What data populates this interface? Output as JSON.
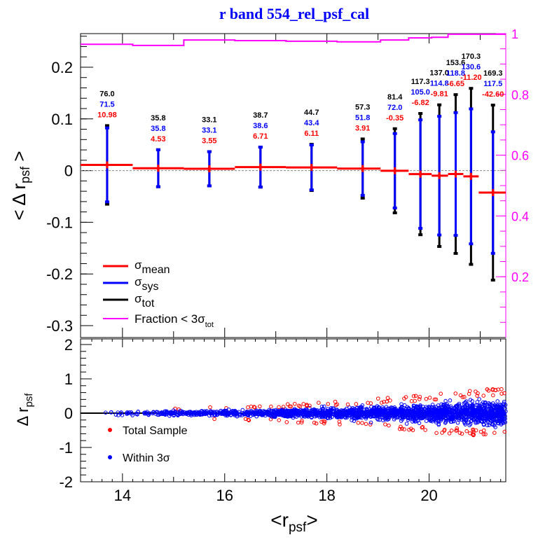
{
  "chart_data": [
    {
      "type": "bar",
      "title": "r band 554_rel_psf_cal",
      "xlabel": "<r_psf>",
      "ylabel": "< Δ r_psf >",
      "y2label": "Fraction < 3σ_tot",
      "xlim": [
        13.18,
        21.5
      ],
      "ylim": [
        -0.323,
        0.265
      ],
      "y2lim": [
        0,
        1
      ],
      "xticks": [
        "14",
        "16",
        "18",
        "20"
      ],
      "yticks": [
        "0.2",
        "0.1",
        "0",
        "-0.1",
        "-0.2",
        "-0.3"
      ],
      "y2ticks": [
        "1",
        "0.8",
        "0.6",
        "0.4",
        "0.2"
      ],
      "bin_edges": [
        13.18,
        14.2,
        15.2,
        16.2,
        17.2,
        18.2,
        19.05,
        19.6,
        20.05,
        20.37,
        20.67,
        20.97,
        21.5
      ],
      "bin_centers": [
        13.7,
        14.7,
        15.7,
        16.7,
        17.7,
        18.7,
        19.33,
        19.83,
        20.2,
        20.52,
        20.82,
        21.25
      ],
      "series": [
        {
          "name": "mean_mmag",
          "color": "#ff0000",
          "labels": [
            "10.98",
            "4.53",
            "3.55",
            "6.71",
            "6.11",
            "3.91",
            "-0.35",
            "-6.82",
            "-9.81",
            "-6.65",
            "-11.20",
            "-42.60"
          ]
        },
        {
          "name": "sigma_sys_mmag",
          "color": "#0000ff",
          "labels": [
            "71.5",
            "35.8",
            "33.1",
            "38.6",
            "43.4",
            "51.8",
            "72.0",
            "105.0",
            "114.8",
            "118.8",
            "130.6",
            "117.5"
          ]
        },
        {
          "name": "sigma_tot_mmag",
          "color": "#000000",
          "labels": [
            "76.0",
            "35.8",
            "33.1",
            "38.7",
            "44.7",
            "57.3",
            "81.4",
            "117.3",
            "137.0",
            "153.6",
            "170.3",
            "169.3"
          ]
        },
        {
          "name": "fraction",
          "color": "#ff00ff",
          "values": [
            0.965,
            0.961,
            0.979,
            0.977,
            0.975,
            0.973,
            0.979,
            0.986,
            0.988,
            0.998,
            0.998,
            0.998
          ]
        }
      ],
      "legend": {
        "placement": "bottom-left",
        "entries": [
          {
            "sym": "σ",
            "sub": "mean",
            "color": "#ff0000"
          },
          {
            "sym": "σ",
            "sub": "sys",
            "color": "#0000ff"
          },
          {
            "sym": "σ",
            "sub": "tot",
            "color": "#000000"
          },
          {
            "sym": "Fraction < 3σ",
            "sub": "tot",
            "color": "#ff00ff"
          }
        ]
      }
    },
    {
      "type": "scatter",
      "xlabel": "<r_psf>",
      "ylabel": "Δ r_psf",
      "xlim": [
        13.18,
        21.5
      ],
      "ylim": [
        -2,
        2
      ],
      "yticks": [
        "2",
        "1",
        "0",
        "-1",
        "-2"
      ],
      "legend": {
        "placement": "bottom-left",
        "entries": [
          {
            "label": "Total Sample",
            "color": "#ff0000"
          },
          {
            "label": "Within 3σ",
            "color": "#0000ff"
          }
        ]
      }
    }
  ]
}
